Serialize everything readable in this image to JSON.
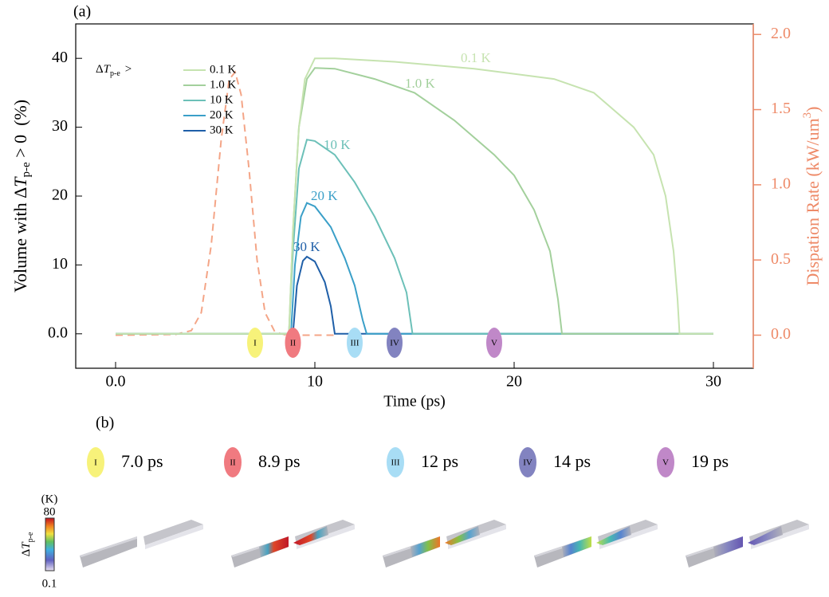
{
  "chart_data": {
    "type": "line",
    "panel_a_label": "(a)",
    "panel_b_label": "(b)",
    "xlabel": "Time (ps)",
    "ylabel": [
      "Volume with Δ",
      "T",
      "p-e",
      " > 0  (%)"
    ],
    "y2label": [
      "Dispation Rate (kW/um",
      "3",
      ")"
    ],
    "legend_title": [
      "Δ",
      "T",
      "p-e",
      ">"
    ],
    "xlim": [
      -2,
      32
    ],
    "xticks": [
      {
        "value": 0,
        "label": "0.0"
      },
      10,
      20,
      30
    ],
    "ylim": [
      -5,
      45
    ],
    "yticks": [
      {
        "value": 0,
        "label": "0.0"
      },
      10,
      20,
      30,
      40
    ],
    "y2lim": [
      -0.22,
      2.07
    ],
    "y2ticks": [
      {
        "value": 0,
        "label": "0.0"
      },
      0.5,
      {
        "value": 1,
        "label": "1.0"
      },
      1.5,
      {
        "value": 2,
        "label": "2.0"
      }
    ],
    "y2color": "#ee8a68",
    "series": [
      {
        "name": "0.1 K",
        "color": "#c6e3b0",
        "x": [
          0,
          8.7,
          8.9,
          9.2,
          9.5,
          10,
          11,
          14,
          18,
          22,
          24,
          26,
          27,
          27.6,
          28,
          28.2,
          28.3,
          30
        ],
        "values": [
          0,
          0,
          15,
          30,
          37,
          40,
          40,
          39.5,
          38.5,
          37,
          35,
          30,
          26,
          20,
          12,
          5,
          0,
          0
        ]
      },
      {
        "name": "1.0 K",
        "color": "#a3d09c",
        "x": [
          0,
          8.7,
          8.9,
          9.2,
          9.6,
          10,
          11,
          13,
          15,
          17,
          19,
          20,
          21,
          21.8,
          22.2,
          22.4,
          30
        ],
        "values": [
          0,
          0,
          15,
          30,
          37,
          38.6,
          38.5,
          37,
          35,
          31,
          26,
          23,
          18,
          12,
          5,
          0,
          0
        ]
      },
      {
        "name": "10 K",
        "color": "#6cc0b8",
        "x": [
          0,
          8.7,
          8.9,
          9.2,
          9.6,
          10,
          11,
          12,
          13,
          14,
          14.6,
          14.9,
          30
        ],
        "values": [
          0,
          0,
          12,
          24,
          28.2,
          28,
          26,
          22,
          17,
          11,
          6,
          0,
          0
        ]
      },
      {
        "name": "20 K",
        "color": "#3a9fc8",
        "x": [
          0,
          8.8,
          9.0,
          9.3,
          9.6,
          10,
          10.8,
          11.5,
          12,
          12.4,
          12.6,
          30
        ],
        "values": [
          0,
          0,
          10,
          17,
          19,
          18.5,
          15.5,
          11,
          7,
          2,
          0,
          0
        ]
      },
      {
        "name": "30 K",
        "color": "#1f5fa8",
        "x": [
          0,
          8.9,
          9.1,
          9.4,
          9.6,
          10,
          10.5,
          10.8,
          11,
          30
        ],
        "values": [
          0,
          0,
          7,
          10.6,
          11.2,
          10.5,
          7.5,
          4,
          0,
          0
        ]
      },
      {
        "color": "#f4a587",
        "axis": "y2",
        "dashed": true,
        "x": [
          0,
          3,
          3.8,
          4.3,
          4.8,
          5.3,
          5.7,
          6,
          6.3,
          6.7,
          7.1,
          7.5,
          8,
          8.6,
          11
        ],
        "values": [
          0,
          0.005,
          0.03,
          0.15,
          0.6,
          1.3,
          1.7,
          1.75,
          1.6,
          1.1,
          0.5,
          0.15,
          0.02,
          0,
          0
        ]
      }
    ],
    "events": [
      {
        "label": "I",
        "time": 7.0,
        "time_label": "7.0 ps",
        "color": "#f7f27a"
      },
      {
        "label": "II",
        "time": 8.9,
        "time_label": "8.9 ps",
        "color": "#f07a80"
      },
      {
        "label": "III",
        "time": 12,
        "time_label": "12 ps",
        "color": "#a8ddf5"
      },
      {
        "label": "IV",
        "time": 14,
        "time_label": "14 ps",
        "color": "#8283c0"
      },
      {
        "label": "V",
        "time": 19,
        "time_label": "19 ps",
        "color": "#c088c8"
      }
    ],
    "colorbar": {
      "unit": "(K)",
      "max_label": "80",
      "min_label": "0.1",
      "label": [
        "Δ",
        "T",
        "p-e"
      ]
    }
  }
}
